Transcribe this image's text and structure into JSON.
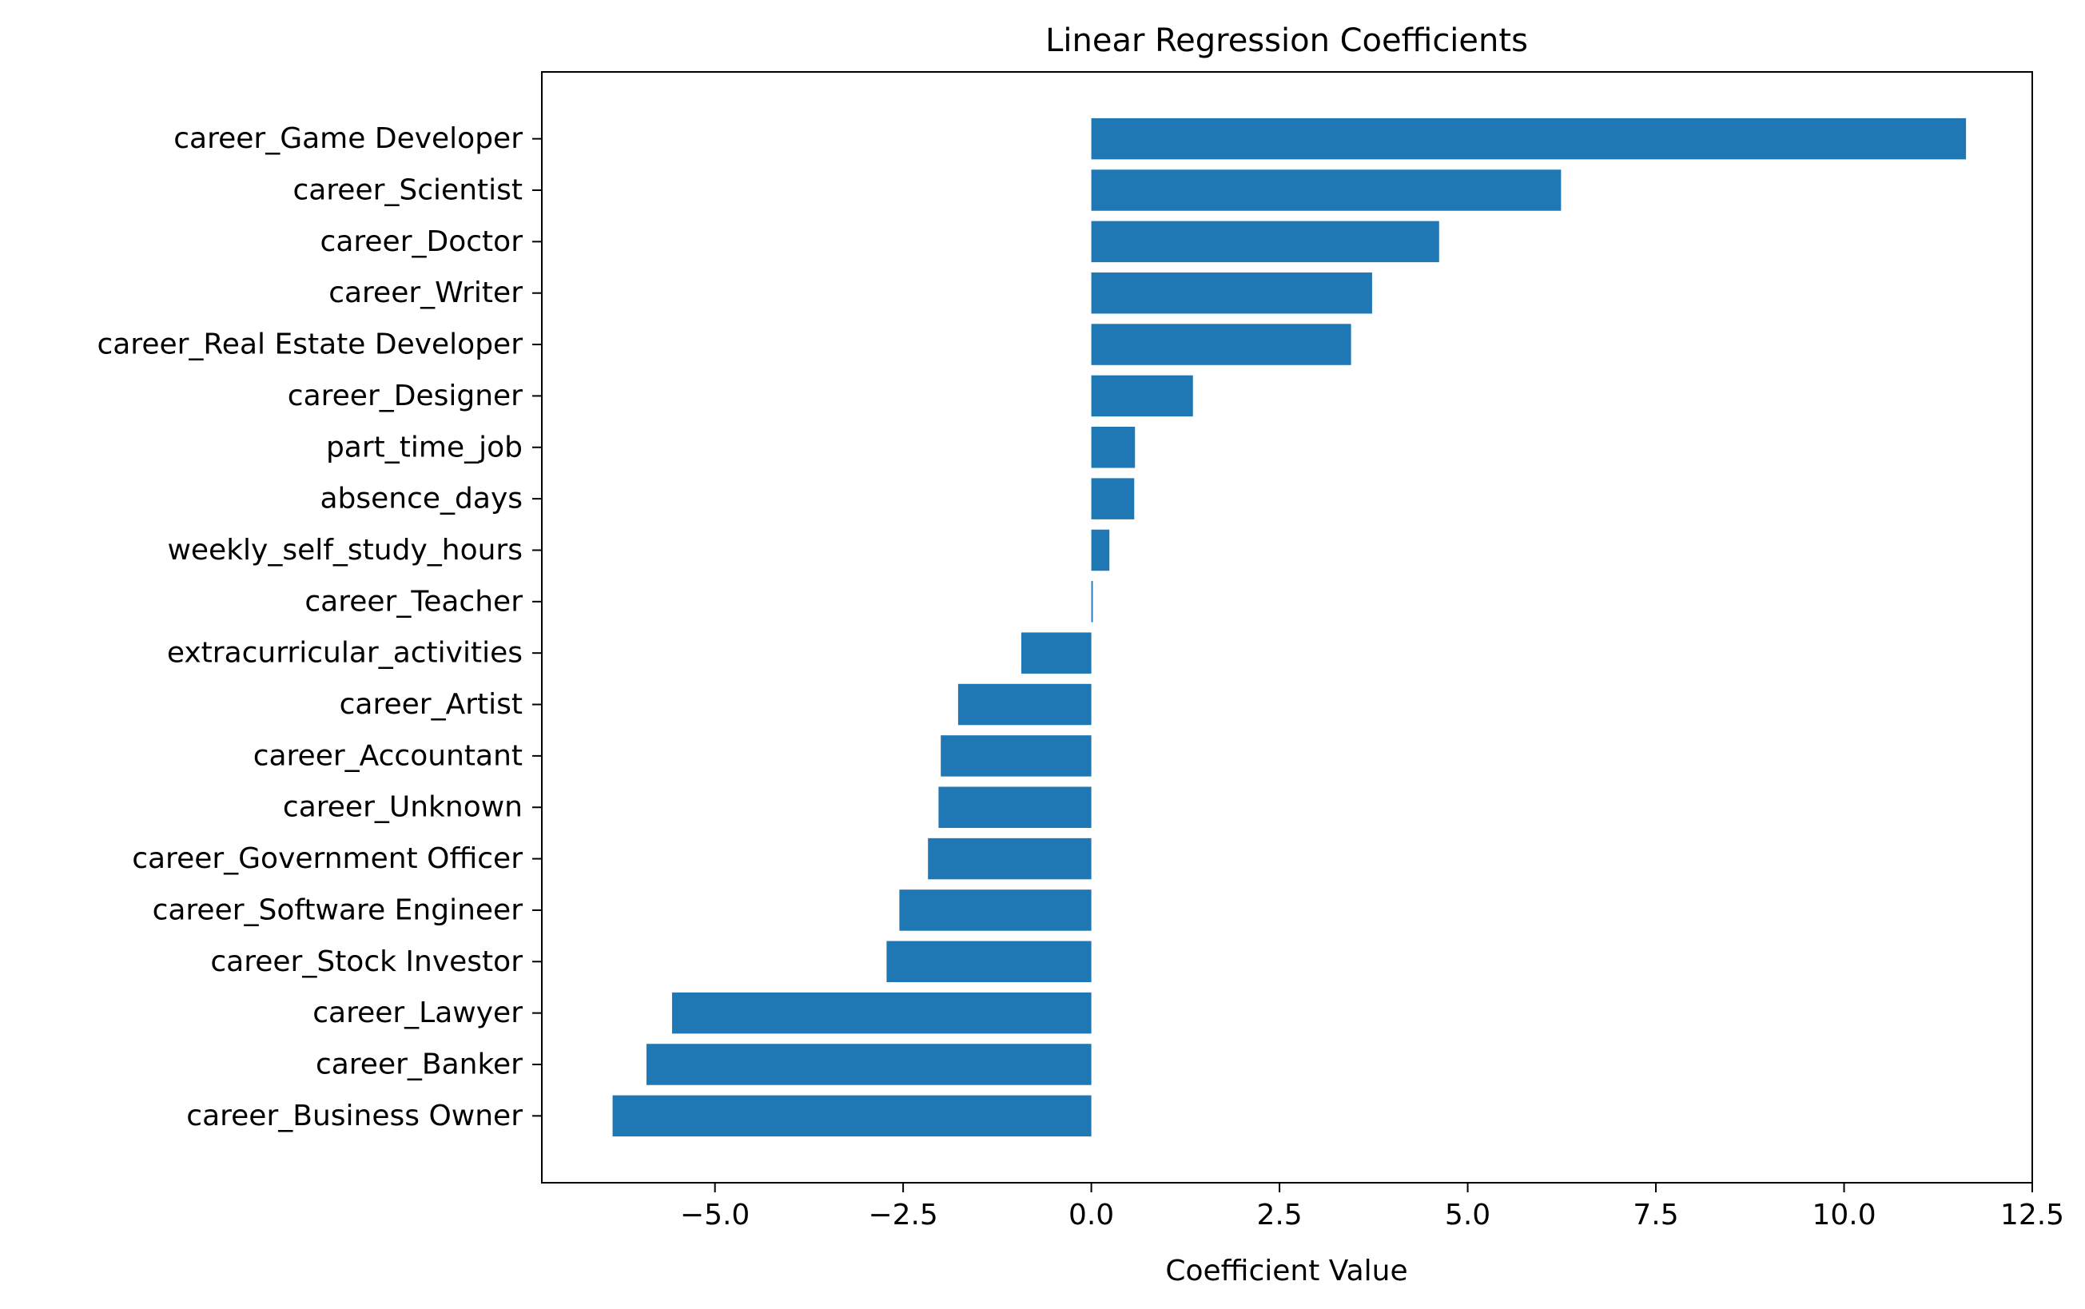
{
  "chart_data": {
    "type": "bar",
    "orientation": "horizontal",
    "title": "Linear Regression Coefficients",
    "xlabel": "Coefficient Value",
    "ylabel": "",
    "xlim": [
      -7.3,
      12.5
    ],
    "xticks": [
      -5.0,
      -2.5,
      0.0,
      2.5,
      5.0,
      7.5,
      10.0,
      12.5
    ],
    "xtick_labels": [
      "−5.0",
      "−2.5",
      "0.0",
      "2.5",
      "5.0",
      "7.5",
      "10.0",
      "12.5"
    ],
    "grid": false,
    "bar_color": "#1f77b4",
    "categories": [
      "career_Game Developer",
      "career_Scientist",
      "career_Doctor",
      "career_Writer",
      "career_Real Estate Developer",
      "career_Designer",
      "part_time_job",
      "absence_days",
      "weekly_self_study_hours",
      "career_Teacher",
      "extracurricular_activities",
      "career_Artist",
      "career_Accountant",
      "career_Unknown",
      "career_Government Officer",
      "career_Software Engineer",
      "career_Stock Investor",
      "career_Lawyer",
      "career_Banker",
      "career_Business Owner"
    ],
    "values": [
      11.62,
      6.24,
      4.62,
      3.73,
      3.45,
      1.35,
      0.58,
      0.57,
      0.24,
      0.02,
      -0.93,
      -1.77,
      -2.0,
      -2.03,
      -2.17,
      -2.55,
      -2.72,
      -5.57,
      -5.91,
      -6.36
    ]
  }
}
